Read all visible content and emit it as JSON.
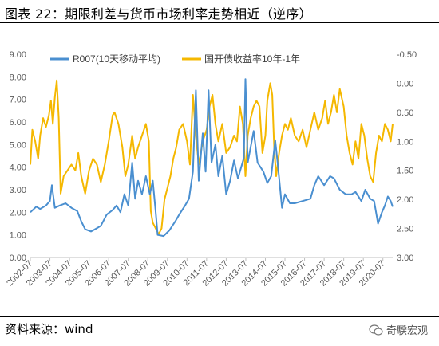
{
  "header": {
    "title": "图表 22：期限利差与货币市场利率走势相近（逆序）"
  },
  "footer": {
    "source": "资料来源：wind",
    "watermark": "奇騤宏观"
  },
  "chart_data": {
    "type": "line",
    "title": "",
    "legend_position": "top",
    "grid": false,
    "x_tick_labels": [
      "2002-07",
      "2003-07",
      "2004-07",
      "2005-07",
      "2006-07",
      "2007-07",
      "2008-07",
      "2009-07",
      "2010-07",
      "2011-07",
      "2012-07",
      "2013-07",
      "2014-07",
      "2015-07",
      "2016-07",
      "2017-07",
      "2018-07",
      "2019-07",
      "2020-07"
    ],
    "x_range": [
      2002.5,
      2021.0
    ],
    "y_left": {
      "range": [
        0,
        9
      ],
      "ticks": [
        "0.00",
        "1.00",
        "2.00",
        "3.00",
        "4.00",
        "5.00",
        "6.00",
        "7.00",
        "8.00",
        "9.00"
      ]
    },
    "y_right": {
      "range": [
        -0.5,
        3.0
      ],
      "reversed": true,
      "ticks": [
        "-0.50",
        "0.00",
        "0.50",
        "1.00",
        "1.50",
        "2.00",
        "2.50",
        "3.00"
      ]
    },
    "series": [
      {
        "name": "R007(10天移动平均)",
        "axis": "left",
        "color": "#4a8fd0",
        "points": [
          [
            2002.5,
            2.0
          ],
          [
            2002.8,
            2.25
          ],
          [
            2003.0,
            2.15
          ],
          [
            2003.3,
            2.3
          ],
          [
            2003.5,
            2.5
          ],
          [
            2003.6,
            3.2
          ],
          [
            2003.75,
            2.2
          ],
          [
            2004.0,
            2.3
          ],
          [
            2004.3,
            2.4
          ],
          [
            2004.6,
            2.2
          ],
          [
            2004.9,
            2.05
          ],
          [
            2005.1,
            1.6
          ],
          [
            2005.3,
            1.25
          ],
          [
            2005.6,
            1.15
          ],
          [
            2005.9,
            1.3
          ],
          [
            2006.1,
            1.4
          ],
          [
            2006.4,
            1.9
          ],
          [
            2006.7,
            2.1
          ],
          [
            2006.9,
            2.3
          ],
          [
            2007.1,
            2.0
          ],
          [
            2007.3,
            2.8
          ],
          [
            2007.5,
            2.3
          ],
          [
            2007.7,
            4.2
          ],
          [
            2007.85,
            2.6
          ],
          [
            2008.0,
            3.4
          ],
          [
            2008.2,
            2.8
          ],
          [
            2008.4,
            3.6
          ],
          [
            2008.6,
            2.8
          ],
          [
            2008.75,
            3.4
          ],
          [
            2008.9,
            2.0
          ],
          [
            2009.0,
            1.0
          ],
          [
            2009.3,
            0.95
          ],
          [
            2009.6,
            1.2
          ],
          [
            2009.9,
            1.6
          ],
          [
            2010.1,
            1.9
          ],
          [
            2010.4,
            2.3
          ],
          [
            2010.6,
            2.6
          ],
          [
            2010.8,
            3.8
          ],
          [
            2010.95,
            7.4
          ],
          [
            2011.1,
            3.4
          ],
          [
            2011.3,
            5.5
          ],
          [
            2011.45,
            3.8
          ],
          [
            2011.6,
            7.4
          ],
          [
            2011.75,
            4.2
          ],
          [
            2011.95,
            5.0
          ],
          [
            2012.1,
            3.6
          ],
          [
            2012.3,
            4.5
          ],
          [
            2012.5,
            2.8
          ],
          [
            2012.7,
            3.4
          ],
          [
            2012.9,
            4.3
          ],
          [
            2013.1,
            3.5
          ],
          [
            2013.4,
            4.4
          ],
          [
            2013.48,
            7.9
          ],
          [
            2013.6,
            4.2
          ],
          [
            2013.9,
            5.6
          ],
          [
            2014.1,
            4.2
          ],
          [
            2014.4,
            3.8
          ],
          [
            2014.6,
            3.3
          ],
          [
            2014.8,
            3.6
          ],
          [
            2015.0,
            5.2
          ],
          [
            2015.15,
            4.0
          ],
          [
            2015.35,
            2.2
          ],
          [
            2015.5,
            2.8
          ],
          [
            2015.75,
            2.4
          ],
          [
            2016.0,
            2.4
          ],
          [
            2016.4,
            2.5
          ],
          [
            2016.8,
            2.6
          ],
          [
            2017.0,
            3.2
          ],
          [
            2017.2,
            3.6
          ],
          [
            2017.5,
            3.2
          ],
          [
            2017.8,
            3.6
          ],
          [
            2018.0,
            3.5
          ],
          [
            2018.3,
            3.0
          ],
          [
            2018.6,
            2.8
          ],
          [
            2018.9,
            2.8
          ],
          [
            2019.1,
            2.9
          ],
          [
            2019.4,
            2.5
          ],
          [
            2019.6,
            3.0
          ],
          [
            2019.85,
            2.6
          ],
          [
            2020.05,
            2.5
          ],
          [
            2020.25,
            1.5
          ],
          [
            2020.45,
            2.0
          ],
          [
            2020.6,
            2.3
          ],
          [
            2020.75,
            2.7
          ],
          [
            2020.9,
            2.5
          ],
          [
            2021.0,
            2.25
          ]
        ]
      },
      {
        "name": "国开债收益率10年-1年",
        "axis": "right",
        "color": "#f5b800",
        "points": [
          [
            2002.5,
            1.4
          ],
          [
            2002.6,
            0.8
          ],
          [
            2002.75,
            1.0
          ],
          [
            2002.9,
            1.3
          ],
          [
            2003.0,
            0.9
          ],
          [
            2003.15,
            0.6
          ],
          [
            2003.3,
            0.75
          ],
          [
            2003.45,
            0.55
          ],
          [
            2003.55,
            0.3
          ],
          [
            2003.65,
            0.7
          ],
          [
            2003.75,
            0.25
          ],
          [
            2003.85,
            -0.05
          ],
          [
            2003.95,
            0.6
          ],
          [
            2004.05,
            1.9
          ],
          [
            2004.2,
            1.6
          ],
          [
            2004.4,
            1.5
          ],
          [
            2004.6,
            1.4
          ],
          [
            2004.8,
            1.5
          ],
          [
            2004.95,
            1.2
          ],
          [
            2005.1,
            1.6
          ],
          [
            2005.3,
            1.9
          ],
          [
            2005.5,
            1.5
          ],
          [
            2005.7,
            1.3
          ],
          [
            2005.9,
            1.4
          ],
          [
            2006.1,
            1.7
          ],
          [
            2006.3,
            1.4
          ],
          [
            2006.5,
            1.0
          ],
          [
            2006.7,
            0.55
          ],
          [
            2006.8,
            0.5
          ],
          [
            2007.0,
            0.7
          ],
          [
            2007.2,
            1.1
          ],
          [
            2007.35,
            1.6
          ],
          [
            2007.5,
            1.4
          ],
          [
            2007.7,
            0.9
          ],
          [
            2007.85,
            1.3
          ],
          [
            2008.0,
            1.1
          ],
          [
            2008.2,
            0.9
          ],
          [
            2008.4,
            0.7
          ],
          [
            2008.55,
            1.0
          ],
          [
            2008.65,
            2.2
          ],
          [
            2008.75,
            2.4
          ],
          [
            2008.9,
            2.5
          ],
          [
            2009.05,
            2.6
          ],
          [
            2009.2,
            2.5
          ],
          [
            2009.35,
            2.0
          ],
          [
            2009.5,
            1.8
          ],
          [
            2009.65,
            1.6
          ],
          [
            2009.8,
            1.3
          ],
          [
            2009.95,
            1.1
          ],
          [
            2010.1,
            0.8
          ],
          [
            2010.3,
            0.7
          ],
          [
            2010.5,
            1.0
          ],
          [
            2010.65,
            1.4
          ],
          [
            2010.8,
            0.2
          ],
          [
            2010.95,
            0.9
          ],
          [
            2011.1,
            1.4
          ],
          [
            2011.3,
            1.0
          ],
          [
            2011.5,
            0.8
          ],
          [
            2011.65,
            0.4
          ],
          [
            2011.8,
            0.2
          ],
          [
            2011.95,
            0.7
          ],
          [
            2012.1,
            1.0
          ],
          [
            2012.3,
            0.7
          ],
          [
            2012.5,
            1.2
          ],
          [
            2012.7,
            1.1
          ],
          [
            2012.9,
            0.9
          ],
          [
            2013.05,
            1.0
          ],
          [
            2013.2,
            0.4
          ],
          [
            2013.35,
            0.7
          ],
          [
            2013.48,
            1.6
          ],
          [
            2013.6,
            0.9
          ],
          [
            2013.75,
            0.6
          ],
          [
            2013.9,
            0.4
          ],
          [
            2014.05,
            0.3
          ],
          [
            2014.2,
            0.4
          ],
          [
            2014.35,
            1.2
          ],
          [
            2014.5,
            0.9
          ],
          [
            2014.6,
            0.3
          ],
          [
            2014.75,
            0.0
          ],
          [
            2014.85,
            0.2
          ],
          [
            2014.95,
            1.1
          ],
          [
            2015.05,
            1.6
          ],
          [
            2015.2,
            1.2
          ],
          [
            2015.35,
            0.9
          ],
          [
            2015.5,
            0.7
          ],
          [
            2015.65,
            0.8
          ],
          [
            2015.8,
            0.6
          ],
          [
            2016.0,
            0.9
          ],
          [
            2016.2,
            1.0
          ],
          [
            2016.4,
            0.8
          ],
          [
            2016.6,
            1.1
          ],
          [
            2016.8,
            0.8
          ],
          [
            2017.0,
            0.5
          ],
          [
            2017.2,
            0.8
          ],
          [
            2017.4,
            0.6
          ],
          [
            2017.55,
            0.3
          ],
          [
            2017.7,
            0.7
          ],
          [
            2017.85,
            0.5
          ],
          [
            2018.0,
            0.2
          ],
          [
            2018.15,
            0.5
          ],
          [
            2018.3,
            0.1
          ],
          [
            2018.5,
            0.4
          ],
          [
            2018.65,
            0.9
          ],
          [
            2018.8,
            1.2
          ],
          [
            2018.95,
            1.4
          ],
          [
            2019.1,
            1.0
          ],
          [
            2019.25,
            1.3
          ],
          [
            2019.4,
            0.7
          ],
          [
            2019.55,
            0.9
          ],
          [
            2019.7,
            1.3
          ],
          [
            2019.85,
            1.6
          ],
          [
            2020.0,
            1.7
          ],
          [
            2020.15,
            1.2
          ],
          [
            2020.3,
            0.9
          ],
          [
            2020.45,
            1.0
          ],
          [
            2020.6,
            0.7
          ],
          [
            2020.75,
            0.8
          ],
          [
            2020.9,
            1.0
          ],
          [
            2021.0,
            0.7
          ]
        ]
      }
    ]
  }
}
